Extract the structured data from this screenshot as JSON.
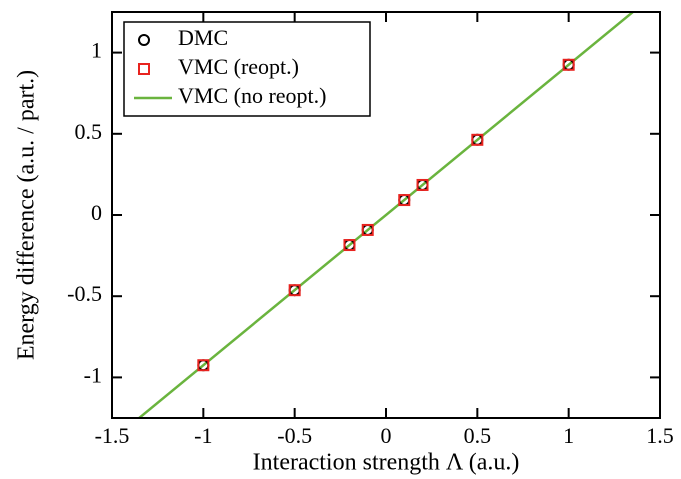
{
  "chart_data": {
    "type": "scatter",
    "xlabel": "Interaction strength Λ (a.u.)",
    "ylabel": "Energy difference (a.u. / part.)",
    "xlim": [
      -1.5,
      1.5
    ],
    "xticks": [
      -1.5,
      -1,
      -0.5,
      0,
      0.5,
      1,
      1.5
    ],
    "ylim": [
      -1.25,
      1.25
    ],
    "yticks": [
      -1,
      -0.5,
      0,
      0.5,
      1
    ],
    "legend": "upper left",
    "series": [
      {
        "name": "DMC",
        "color": "#000000",
        "marker": "circle",
        "x": [
          -1,
          -0.5,
          -0.2,
          -0.1,
          0.1,
          0.2,
          0.5,
          1
        ],
        "values": [
          -0.925,
          -0.463,
          -0.185,
          -0.092,
          0.092,
          0.185,
          0.463,
          0.925
        ]
      },
      {
        "name": "VMC (reopt.)",
        "color": "#e8231f",
        "marker": "square",
        "x": [
          -1,
          -0.5,
          -0.2,
          -0.1,
          0.1,
          0.2,
          0.5,
          1
        ],
        "values": [
          -0.925,
          -0.463,
          -0.185,
          -0.092,
          0.092,
          0.185,
          0.463,
          0.925
        ]
      },
      {
        "name": "VMC (no reopt.)",
        "color": "#6ab43e",
        "marker": "line",
        "x": [
          -1.5,
          1.5
        ],
        "values": [
          -1.3875,
          1.3875
        ]
      }
    ]
  }
}
